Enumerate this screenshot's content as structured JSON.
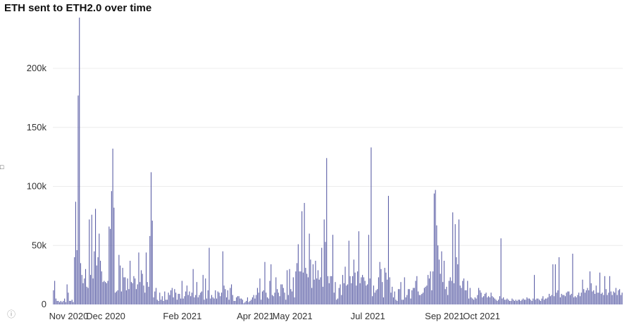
{
  "chart_data": {
    "type": "bar",
    "title": "ETH sent to ETH2.0 over time",
    "xlabel": "",
    "ylabel": "",
    "ylim": [
      0,
      240000
    ],
    "grid": true,
    "bar_color": "#5b5ea6",
    "x_start": "2020-11-03",
    "y_ticks": [
      {
        "value": 0,
        "label": "0"
      },
      {
        "value": 50000,
        "label": "50k"
      },
      {
        "value": 100000,
        "label": "100k"
      },
      {
        "value": 150000,
        "label": "150k"
      },
      {
        "value": 200000,
        "label": "200k"
      }
    ],
    "x_ticks": [
      {
        "date": "2020-11-01",
        "label": "Nov 2020"
      },
      {
        "date": "2020-12-01",
        "label": "Dec 2020"
      },
      {
        "date": "2021-02-01",
        "label": "Feb 2021"
      },
      {
        "date": "2021-04-01",
        "label": "Apr 2021"
      },
      {
        "date": "2021-05-01",
        "label": "May 2021"
      },
      {
        "date": "2021-07-01",
        "label": "Jul 2021"
      },
      {
        "date": "2021-09-01",
        "label": "Sep 2021"
      },
      {
        "date": "2021-10-01",
        "label": "Oct 2021"
      }
    ],
    "values": [
      12000,
      20000,
      5000,
      3000,
      3000,
      2000,
      3000,
      2000,
      3000,
      5000,
      2000,
      17000,
      10000,
      3000,
      3000,
      4000,
      2000,
      40000,
      87000,
      46000,
      177000,
      243000,
      35000,
      25000,
      18000,
      22000,
      30000,
      15000,
      14000,
      72000,
      25000,
      76000,
      22000,
      45000,
      81000,
      33000,
      40000,
      60000,
      37000,
      28000,
      19000,
      20000,
      19000,
      18000,
      20000,
      66000,
      64000,
      96000,
      132000,
      82000,
      10000,
      11000,
      12000,
      42000,
      33000,
      11000,
      31000,
      23000,
      23000,
      12000,
      22000,
      13000,
      37000,
      19000,
      18000,
      24000,
      22000,
      13000,
      17000,
      44000,
      19000,
      29000,
      26000,
      16000,
      10000,
      44000,
      19000,
      15000,
      58000,
      112000,
      71000,
      6000,
      11000,
      14000,
      4000,
      3000,
      10000,
      4000,
      7000,
      3000,
      11000,
      4000,
      4000,
      10000,
      8000,
      12000,
      14000,
      6000,
      13000,
      10000,
      4000,
      9000,
      9000,
      5000,
      20000,
      5000,
      7000,
      11000,
      16000,
      8000,
      11000,
      7000,
      10000,
      30000,
      6000,
      8000,
      19000,
      6000,
      8000,
      10000,
      11000,
      25000,
      4000,
      22000,
      5000,
      12000,
      48000,
      5000,
      8000,
      6000,
      5000,
      12000,
      5000,
      11000,
      10000,
      7000,
      10000,
      45000,
      16000,
      13000,
      6000,
      12000,
      4000,
      14000,
      17000,
      8000,
      3000,
      3000,
      6000,
      7000,
      7000,
      5000,
      5000,
      4000,
      1000,
      2000,
      3000,
      6000,
      2000,
      3000,
      4000,
      6000,
      8000,
      5000,
      8000,
      14000,
      10000,
      22000,
      4000,
      11000,
      12000,
      36000,
      10000,
      6000,
      5000,
      20000,
      34000,
      8000,
      7000,
      10000,
      23000,
      13000,
      10000,
      7000,
      17000,
      17000,
      14000,
      10000,
      4000,
      29000,
      8000,
      30000,
      13000,
      11000,
      23000,
      6000,
      28000,
      35000,
      51000,
      28000,
      28000,
      79000,
      27000,
      86000,
      31000,
      26000,
      23000,
      60000,
      38000,
      14000,
      34000,
      21000,
      37000,
      22000,
      29000,
      21000,
      23000,
      48000,
      15000,
      72000,
      53000,
      124000,
      24000,
      18000,
      24000,
      24000,
      59000,
      10000,
      19000,
      4000,
      5000,
      14000,
      17000,
      8000,
      25000,
      18000,
      32000,
      16000,
      17000,
      54000,
      24000,
      18000,
      24000,
      38000,
      27000,
      16000,
      28000,
      62000,
      18000,
      23000,
      25000,
      23000,
      20000,
      16000,
      17000,
      59000,
      22000,
      133000,
      7000,
      16000,
      10000,
      12000,
      13000,
      23000,
      36000,
      30000,
      19000,
      6000,
      31000,
      27000,
      21000,
      92000,
      23000,
      10000,
      15000,
      6000,
      11000,
      4000,
      3000,
      13000,
      13000,
      19000,
      4000,
      4000,
      23000,
      6000,
      8000,
      13000,
      13000,
      5000,
      12000,
      14000,
      14000,
      20000,
      24000,
      11000,
      8000,
      8000,
      9000,
      10000,
      14000,
      15000,
      16000,
      25000,
      22000,
      28000,
      12000,
      28000,
      94000,
      97000,
      67000,
      50000,
      38000,
      26000,
      45000,
      19000,
      37000,
      13000,
      15000,
      8000,
      20000,
      23000,
      20000,
      78000,
      18000,
      68000,
      40000,
      34000,
      72000,
      16000,
      14000,
      20000,
      22000,
      12000,
      12000,
      20000,
      5000,
      14000,
      6000,
      5000,
      4000,
      6000,
      5000,
      8000,
      14000,
      12000,
      10000,
      6000,
      7000,
      9000,
      10000,
      6000,
      7000,
      6000,
      10000,
      7000,
      6000,
      5000,
      4000,
      3000,
      4000,
      7000,
      56000,
      5000,
      6000,
      4000,
      4000,
      5000,
      4000,
      3000,
      3000,
      5000,
      4000,
      3000,
      4000,
      3000,
      4000,
      4000,
      3000,
      4000,
      5000,
      4000,
      4000,
      6000,
      5000,
      5000,
      4000,
      3000,
      5000,
      25000,
      4000,
      5000,
      5000,
      4000,
      3000,
      5000,
      7000,
      4000,
      5000,
      5000,
      6000,
      9000,
      7000,
      8000,
      34000,
      7000,
      34000,
      10000,
      12000,
      40000,
      6000,
      9000,
      8000,
      8000,
      7000,
      10000,
      11000,
      11000,
      8000,
      9000,
      43000,
      6000,
      7000,
      6000,
      8000,
      10000,
      7000,
      10000,
      21000,
      13000,
      10000,
      12000,
      14000,
      12000,
      28000,
      18000,
      11000,
      12000,
      9000,
      16000,
      10000,
      10000,
      27000,
      9000,
      10000,
      8000,
      24000,
      13000,
      8000,
      10000,
      24000,
      11000,
      8000,
      11000,
      10000,
      14000,
      8000,
      12000,
      13000,
      8000,
      10000
    ]
  }
}
